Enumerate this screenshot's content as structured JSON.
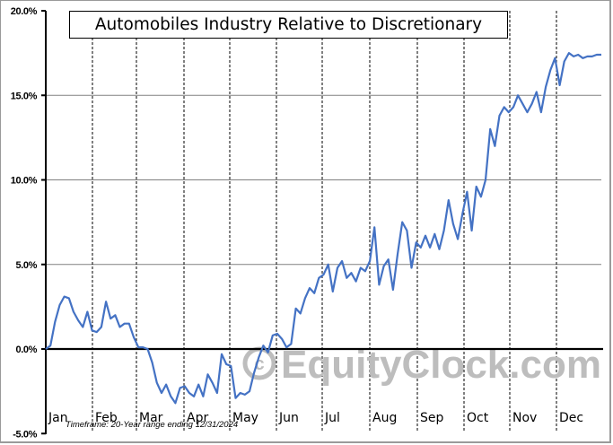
{
  "chart_data": {
    "type": "line",
    "title": "Automobiles Industry Relative to Discretionary",
    "xlabel": "",
    "ylabel": "",
    "ylim": [
      -5.0,
      20.0
    ],
    "yticks": [
      "20.0%",
      "15.0%",
      "10.0%",
      "5.0%",
      "0.0%",
      "-5.0%"
    ],
    "ytick_values": [
      20,
      15,
      10,
      5,
      0,
      -5
    ],
    "categories": [
      "Jan",
      "Feb",
      "Mar",
      "Apr",
      "May",
      "Jun",
      "Jul",
      "Aug",
      "Sep",
      "Oct",
      "Nov",
      "Dec"
    ],
    "grid": {
      "horizontal": true,
      "vertical_dashed_month_separators": true
    },
    "legend": "none",
    "annotation": "Timeframe: 20-Year range ending 12/31/2024",
    "watermark": "© EquityClock.com",
    "series": [
      {
        "name": "Automobiles Industry Relative to Discretionary",
        "color": "#4472c4",
        "x": [
          0.0,
          0.1,
          0.2,
          0.3,
          0.4,
          0.5,
          0.6,
          0.7,
          0.8,
          0.9,
          1.0,
          1.1,
          1.2,
          1.3,
          1.4,
          1.5,
          1.6,
          1.7,
          1.8,
          1.9,
          2.0,
          2.1,
          2.2,
          2.3,
          2.4,
          2.5,
          2.6,
          2.7,
          2.8,
          2.9,
          3.0,
          3.1,
          3.2,
          3.3,
          3.4,
          3.5,
          3.6,
          3.7,
          3.8,
          3.9,
          4.0,
          4.1,
          4.2,
          4.3,
          4.4,
          4.5,
          4.6,
          4.7,
          4.8,
          4.9,
          5.0,
          5.1,
          5.2,
          5.3,
          5.4,
          5.5,
          5.6,
          5.7,
          5.8,
          5.9,
          6.0,
          6.1,
          6.2,
          6.3,
          6.4,
          6.5,
          6.6,
          6.7,
          6.8,
          6.9,
          7.0,
          7.1,
          7.2,
          7.3,
          7.4,
          7.5,
          7.6,
          7.7,
          7.8,
          7.9,
          8.0,
          8.1,
          8.2,
          8.3,
          8.4,
          8.5,
          8.6,
          8.7,
          8.8,
          8.9,
          9.0,
          9.1,
          9.2,
          9.3,
          9.4,
          9.5,
          9.6,
          9.7,
          9.8,
          9.9,
          10.0,
          10.1,
          10.2,
          10.3,
          10.4,
          10.5,
          10.6,
          10.7,
          10.8,
          10.9,
          11.0,
          11.1,
          11.2,
          11.3,
          11.4,
          11.5,
          11.6,
          11.7,
          11.8,
          11.9,
          12.0
        ],
        "values": [
          0.0,
          0.2,
          1.6,
          2.6,
          3.1,
          3.0,
          2.2,
          1.7,
          1.3,
          2.2,
          1.1,
          1.0,
          1.3,
          2.8,
          1.8,
          2.0,
          1.3,
          1.5,
          1.5,
          0.7,
          0.1,
          0.1,
          0.0,
          -0.8,
          -2.0,
          -2.6,
          -2.1,
          -2.8,
          -3.2,
          -2.3,
          -2.2,
          -2.6,
          -2.8,
          -2.1,
          -2.8,
          -1.5,
          -2.0,
          -2.6,
          -0.3,
          -0.9,
          -1.0,
          -2.9,
          -2.6,
          -2.7,
          -2.5,
          -1.4,
          -0.5,
          0.2,
          -0.2,
          0.8,
          0.9,
          0.6,
          0.1,
          0.3,
          2.4,
          2.1,
          3.0,
          3.6,
          3.3,
          4.2,
          4.4,
          5.0,
          3.4,
          4.8,
          5.2,
          4.2,
          4.5,
          4.0,
          4.8,
          4.6,
          5.2,
          7.2,
          3.8,
          4.9,
          5.3,
          3.5,
          5.6,
          7.5,
          7.0,
          4.8,
          6.3,
          6.0,
          6.7,
          6.0,
          6.8,
          5.9,
          7.0,
          8.8,
          7.4,
          6.5,
          8.0,
          9.3,
          7.0,
          9.6,
          9.0,
          10.0,
          13.0,
          12.0,
          13.8,
          14.3,
          14.0,
          14.3,
          15.0,
          14.5,
          14.0,
          14.5,
          15.2,
          14.0,
          15.5,
          16.5,
          17.2,
          15.6,
          17.0,
          17.5,
          17.3,
          17.4,
          17.2,
          17.3,
          17.3,
          17.4,
          17.4
        ]
      }
    ]
  },
  "title": "Automobiles Industry Relative to Discretionary",
  "footnote": "Timeframe: 20-Year range ending 12/31/2024",
  "watermark": "© EquityClock.com",
  "yaxis": {
    "labels": [
      "20.0%",
      "15.0%",
      "10.0%",
      "5.0%",
      "0.0%",
      "-5.0%"
    ]
  },
  "xaxis": {
    "months": [
      "Jan",
      "Feb",
      "Mar",
      "Apr",
      "May",
      "Jun",
      "Jul",
      "Aug",
      "Sep",
      "Oct",
      "Nov",
      "Dec"
    ]
  },
  "colors": {
    "line": "#4472c4",
    "grid": "#808080",
    "axis": "#000000",
    "watermark": "#bdbdbd"
  }
}
